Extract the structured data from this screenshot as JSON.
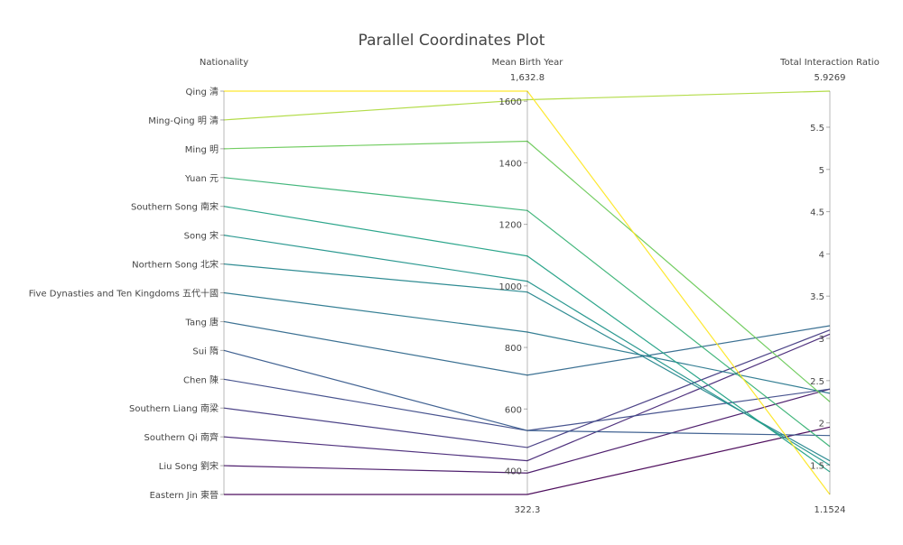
{
  "chart_data": {
    "type": "parallel_coordinates",
    "title": "Parallel Coordinates Plot",
    "dimensions": [
      {
        "name": "Nationality",
        "categories": [
          "Eastern Jin 東晉",
          "Liu Song 劉宋",
          "Southern Qi 南齊",
          "Southern Liang 南梁",
          "Chen 陳",
          "Sui 隋",
          "Tang 唐",
          "Five Dynasties and Ten Kingdoms 五代十國",
          "Northern Song 北宋",
          "Song 宋",
          "Southern Song 南宋",
          "Yuan 元",
          "Ming 明",
          "Ming-Qing 明 清",
          "Qing 清"
        ]
      },
      {
        "name": "Mean Birth Year",
        "range": [
          322.3,
          1632.8
        ],
        "range_labels": [
          "322.3",
          "1,632.8"
        ],
        "ticks": [
          400,
          600,
          800,
          1000,
          1200,
          1400,
          1600
        ],
        "tick_labels": [
          "400",
          "600",
          "800",
          "1000",
          "1200",
          "1400",
          "1600"
        ]
      },
      {
        "name": "Total Interaction Ratio",
        "range": [
          1.1524,
          5.9269
        ],
        "range_labels": [
          "1.1524",
          "5.9269"
        ],
        "ticks": [
          1.5,
          2,
          2.5,
          3,
          3.5,
          4,
          4.5,
          5,
          5.5
        ],
        "tick_labels": [
          "1.5",
          "2",
          "2.5",
          "3",
          "3.5",
          "4",
          "4.5",
          "5",
          "5.5"
        ]
      }
    ],
    "records": [
      {
        "nationality": "Eastern Jin 東晉",
        "birth_year": 322.3,
        "ratio": 1.95
      },
      {
        "nationality": "Liu Song 劉宋",
        "birth_year": 392,
        "ratio": 2.4
      },
      {
        "nationality": "Southern Qi 南齊",
        "birth_year": 432,
        "ratio": 3.05
      },
      {
        "nationality": "Southern Liang 南梁",
        "birth_year": 475,
        "ratio": 3.1
      },
      {
        "nationality": "Chen 陳",
        "birth_year": 530,
        "ratio": 2.4
      },
      {
        "nationality": "Sui 隋",
        "birth_year": 530,
        "ratio": 1.85
      },
      {
        "nationality": "Tang 唐",
        "birth_year": 710,
        "ratio": 3.15
      },
      {
        "nationality": "Five Dynasties and Ten Kingdoms 五代十國",
        "birth_year": 850,
        "ratio": 2.35
      },
      {
        "nationality": "Northern Song 北宋",
        "birth_year": 980,
        "ratio": 1.55
      },
      {
        "nationality": "Song 宋",
        "birth_year": 1015,
        "ratio": 1.5
      },
      {
        "nationality": "Southern Song 南宋",
        "birth_year": 1097,
        "ratio": 1.42
      },
      {
        "nationality": "Yuan 元",
        "birth_year": 1245,
        "ratio": 1.72
      },
      {
        "nationality": "Ming 明",
        "birth_year": 1470,
        "ratio": 2.25
      },
      {
        "nationality": "Ming-Qing 明 清",
        "birth_year": 1605,
        "ratio": 5.9269
      },
      {
        "nationality": "Qing 清",
        "birth_year": 1632.8,
        "ratio": 1.1524
      }
    ],
    "color_scale": "viridis"
  }
}
